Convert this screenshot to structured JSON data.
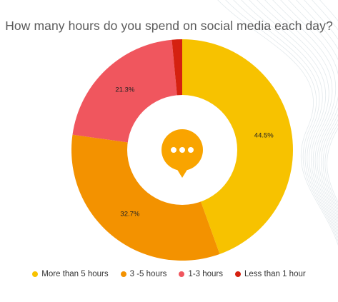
{
  "chart_data": {
    "type": "pie",
    "donut": true,
    "title": "How many hours do you spend on social media each day?",
    "categories": [
      "More than 5 hours",
      "3 -5 hours",
      "1-3 hours",
      "Less than 1 hour"
    ],
    "values": [
      44.5,
      32.7,
      21.3,
      1.5
    ],
    "data_labels": [
      "44.5%",
      "32.7%",
      "21.3%",
      ""
    ],
    "colors": [
      "#F7C200",
      "#F39200",
      "#F0565E",
      "#D52110"
    ],
    "legend_position": "bottom",
    "center_icon": "speech-bubble-ellipsis-icon",
    "center_icon_color": "#F9A400"
  }
}
